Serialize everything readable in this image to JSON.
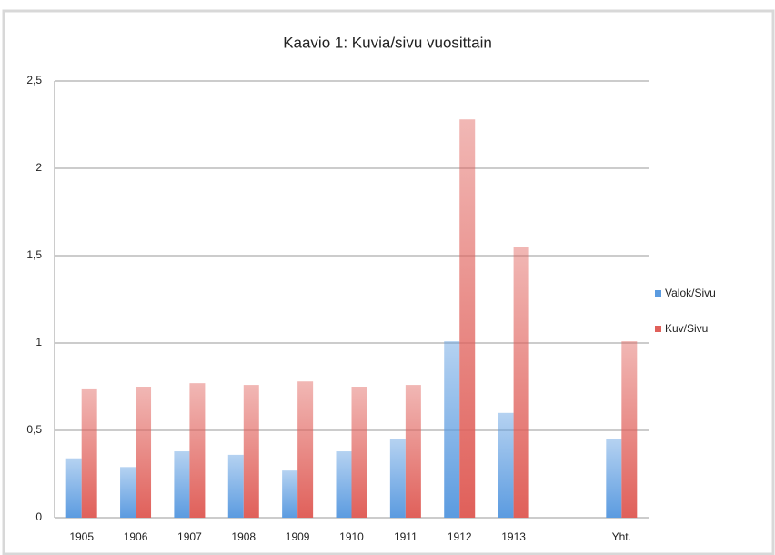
{
  "chart_data": {
    "type": "bar",
    "title": "Kaavio 1: Kuvia/sivu vuosittain",
    "categories": [
      "1905",
      "1906",
      "1907",
      "1908",
      "1909",
      "1910",
      "1911",
      "1912",
      "1913",
      null,
      "Yht."
    ],
    "series": [
      {
        "name": "Valok/Sivu",
        "color": "#5b9be0",
        "values": [
          0.34,
          0.29,
          0.38,
          0.36,
          0.27,
          0.38,
          0.45,
          1.01,
          0.6,
          null,
          0.45
        ]
      },
      {
        "name": "Kuv/Sivu",
        "color": "#e0605a",
        "values": [
          0.74,
          0.75,
          0.77,
          0.76,
          0.78,
          0.75,
          0.76,
          2.28,
          1.55,
          null,
          1.01
        ]
      }
    ],
    "ylim": [
      0,
      2.5
    ],
    "yticks": [
      0,
      {
        "value": 0.5,
        "label": "0,5"
      },
      1,
      {
        "value": 1.5,
        "label": "1,5"
      },
      2,
      {
        "value": 2.5,
        "label": "2,5"
      }
    ],
    "grid": true,
    "legend": "right"
  }
}
